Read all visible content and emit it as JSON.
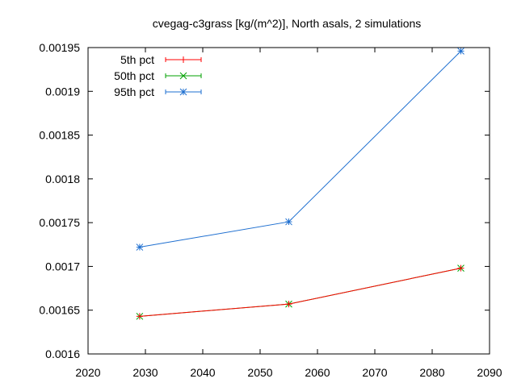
{
  "chart_data": {
    "type": "line",
    "title": "cvegag-c3grass [kg/(m^2)], North asals, 2 simulations",
    "xlabel": "",
    "ylabel": "",
    "xlim": [
      2020,
      2090
    ],
    "ylim": [
      0.0016,
      0.00195
    ],
    "xticks": [
      "2020",
      "2030",
      "2040",
      "2050",
      "2060",
      "2070",
      "2080",
      "2090"
    ],
    "yticks": [
      "0.0016",
      "0.00165",
      "0.0017",
      "0.00175",
      "0.0018",
      "0.00185",
      "0.0019",
      "0.00195"
    ],
    "grid": false,
    "legend_position": "top-left",
    "x": [
      2029,
      2055,
      2085
    ],
    "series": [
      {
        "name": "5th pct",
        "color": "#ff0000",
        "marker": "plus",
        "values": [
          0.001643,
          0.001657,
          0.001698
        ]
      },
      {
        "name": "50th pct",
        "color": "#00a000",
        "marker": "cross",
        "values": [
          0.001643,
          0.001657,
          0.001698
        ]
      },
      {
        "name": "95th pct",
        "color": "#1e6fd0",
        "marker": "star",
        "values": [
          0.001722,
          0.001751,
          0.001946
        ]
      }
    ]
  }
}
